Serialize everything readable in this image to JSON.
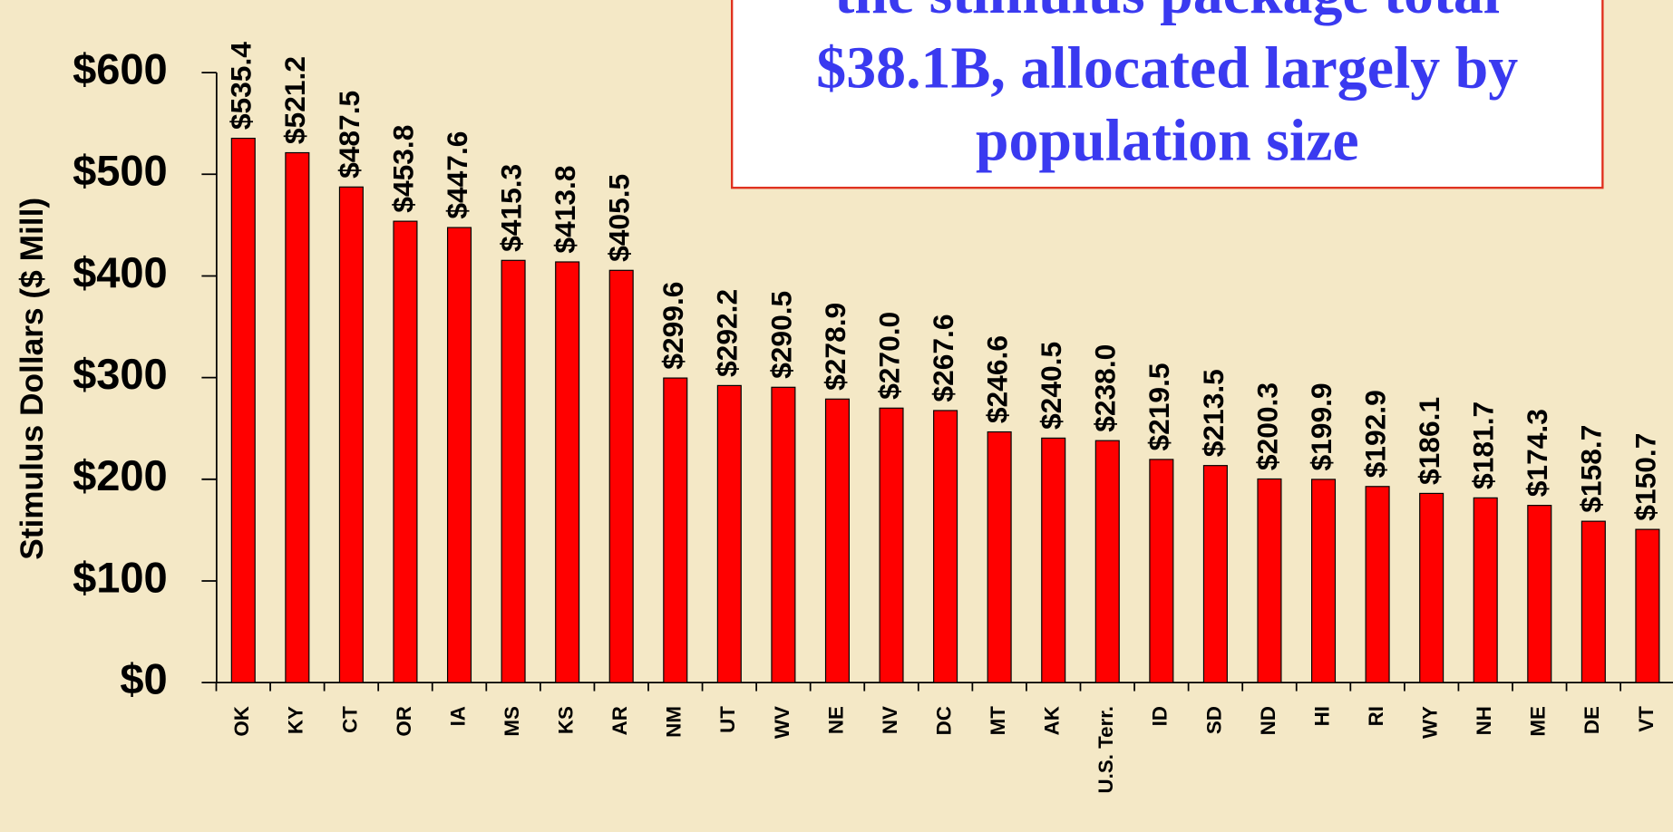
{
  "chart_data": {
    "type": "bar",
    "y_label": "Stimulus Dollars ($ Mill)",
    "annotation": [
      "the stimulus package total",
      "$38.1B, allocated largely by",
      "population size"
    ],
    "categories": [
      "OK",
      "KY",
      "CT",
      "OR",
      "IA",
      "MS",
      "KS",
      "AR",
      "NM",
      "UT",
      "WV",
      "NE",
      "NV",
      "DC",
      "MT",
      "AK",
      "U.S. Terr.",
      "ID",
      "SD",
      "ND",
      "HI",
      "RI",
      "WY",
      "NH",
      "ME",
      "DE",
      "VT"
    ],
    "values": [
      535.4,
      521.2,
      487.5,
      453.8,
      447.6,
      415.3,
      413.8,
      405.5,
      299.6,
      292.2,
      290.5,
      278.9,
      270.0,
      267.6,
      246.6,
      240.5,
      238.0,
      219.5,
      213.5,
      200.3,
      199.9,
      192.9,
      186.1,
      181.7,
      174.3,
      158.7,
      150.7
    ],
    "value_labels": [
      "$535.4",
      "$521.2",
      "$487.5",
      "$453.8",
      "$447.6",
      "$415.3",
      "$413.8",
      "$405.5",
      "$299.6",
      "$292.2",
      "$290.5",
      "$278.9",
      "$270.0",
      "$267.6",
      "$246.6",
      "$240.5",
      "$238.0",
      "$219.5",
      "$213.5",
      "$200.3",
      "$199.9",
      "$192.9",
      "$186.1",
      "$181.7",
      "$174.3",
      "$158.7",
      "$150.7"
    ],
    "color": "#ff0000",
    "ylim": [
      0,
      600
    ],
    "yticks": [
      {
        "value": 0,
        "label": "$0"
      },
      {
        "value": 100,
        "label": "$100"
      },
      {
        "value": 200,
        "label": "$200"
      },
      {
        "value": 300,
        "label": "$300"
      },
      {
        "value": 400,
        "label": "$400"
      },
      {
        "value": 500,
        "label": "$500"
      },
      {
        "value": 600,
        "label": "$600"
      }
    ]
  }
}
